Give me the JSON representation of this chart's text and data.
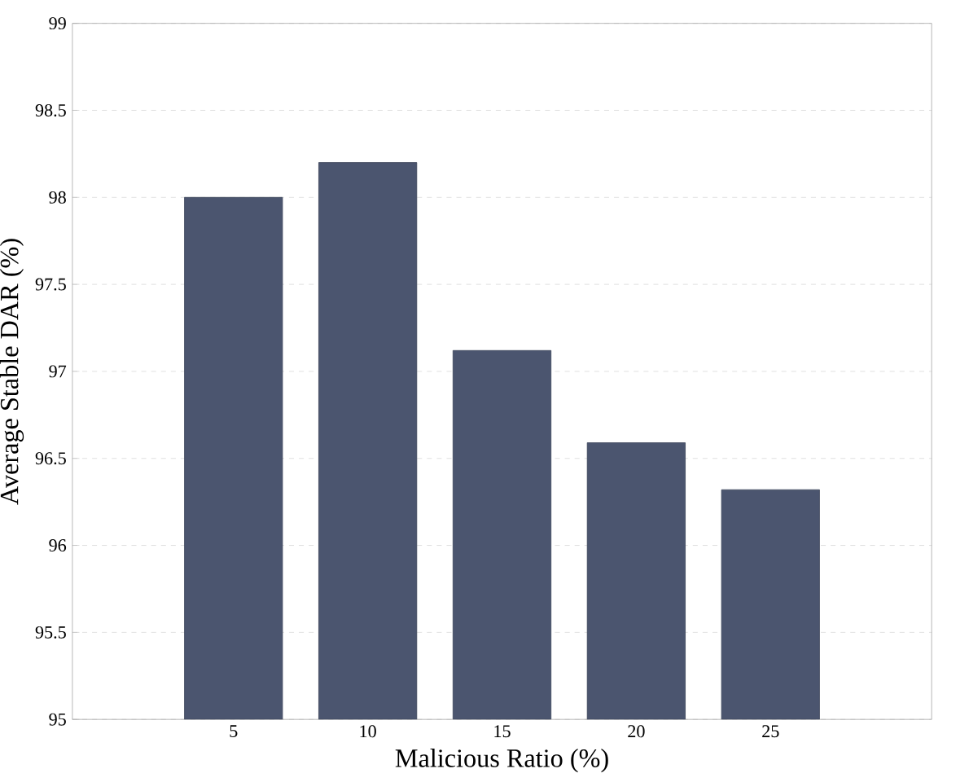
{
  "chart_data": {
    "type": "bar",
    "xlabel": "Malicious Ratio (%)",
    "ylabel": "Average Stable DAR (%)",
    "categories": [
      "5",
      "10",
      "15",
      "20",
      "25"
    ],
    "values": [
      98.0,
      98.2,
      97.12,
      96.59,
      96.32
    ],
    "color": "#4b556f",
    "ylim": [
      95,
      99
    ],
    "yticks": [
      95,
      95.5,
      96,
      96.5,
      97,
      97.5,
      98,
      98.5,
      99
    ],
    "grid": "y"
  }
}
